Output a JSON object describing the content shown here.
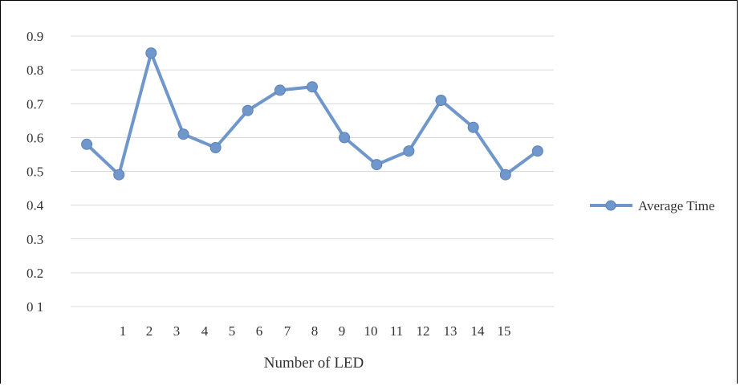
{
  "chart_data": {
    "type": "line",
    "title": "",
    "xlabel": "Number of LED",
    "ylabel": "",
    "x_tick_labels": [
      "1",
      "2",
      "3",
      "4",
      "5",
      "6",
      "7",
      "8",
      "9",
      "10",
      "11",
      "12",
      "13",
      "14",
      "15"
    ],
    "y_tick_labels": [
      "0.9",
      "0.8",
      "0.7",
      "0.6",
      "0.5",
      "0.4",
      "0.3",
      "0.2",
      "0 1"
    ],
    "ylim": [
      0.1,
      0.9
    ],
    "grid": true,
    "legend_position": "right",
    "series": [
      {
        "name": "Average Time",
        "color": "#6f97cc",
        "values": [
          0.58,
          0.49,
          0.85,
          0.61,
          0.57,
          0.68,
          0.74,
          0.75,
          0.6,
          0.52,
          0.56,
          0.71,
          0.63,
          0.49,
          0.56
        ]
      }
    ]
  }
}
